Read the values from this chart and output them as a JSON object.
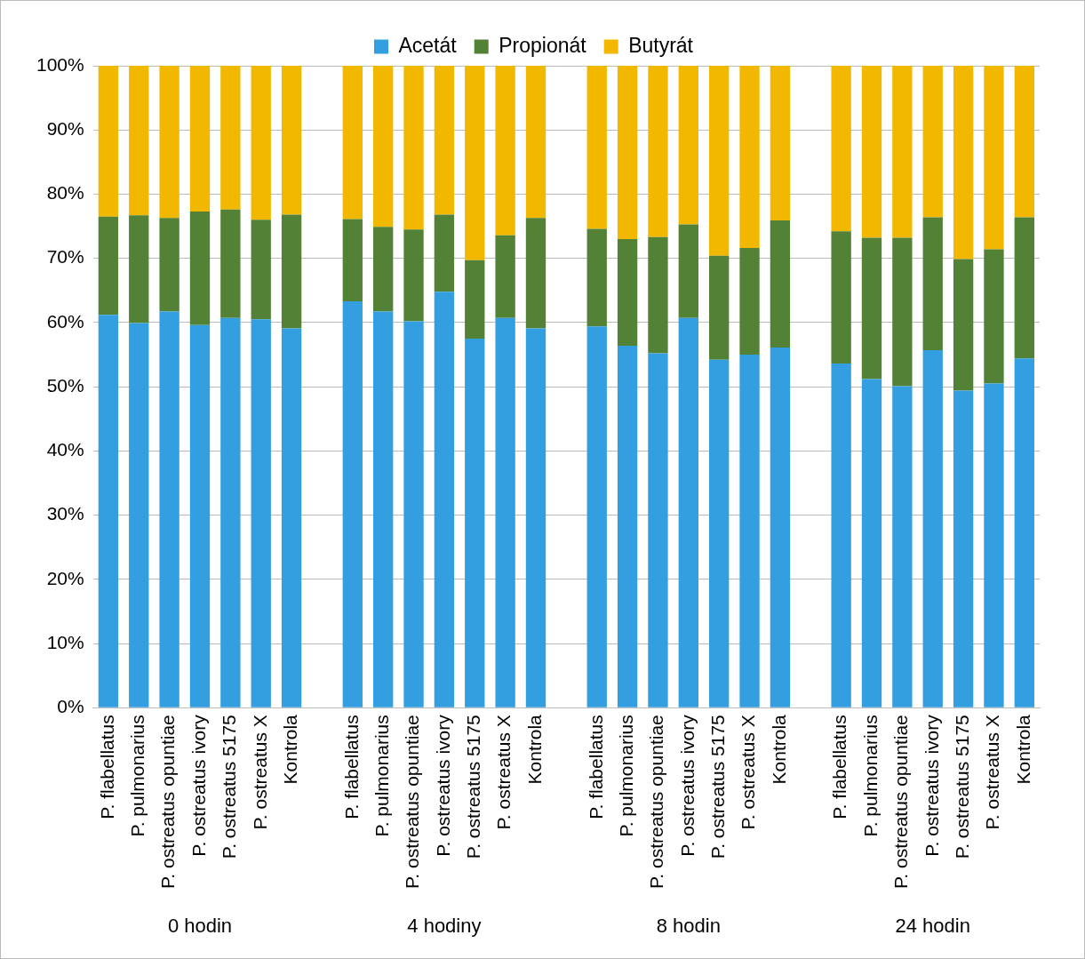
{
  "chart_data": {
    "type": "bar",
    "stacked": true,
    "categories": [
      "P. flabellatus",
      "P. pulmonarius",
      "P. ostreatus opuntiae",
      "P. ostreatus ivory",
      "P. ostreatus 5175",
      "P. ostreatus X",
      "Kontrola",
      null,
      "P. flabellatus",
      "P. pulmonarius",
      "P. ostreatus opuntiae",
      "P. ostreatus ivory",
      "P. ostreatus 5175",
      "P. ostreatus X",
      "Kontrola",
      null,
      "P. flabellatus",
      "P. pulmonarius",
      "P. ostreatus opuntiae",
      "P. ostreatus ivory",
      "P. ostreatus 5175",
      "P. ostreatus X",
      "Kontrola",
      null,
      "P. flabellatus",
      "P. pulmonarius",
      "P. ostreatus opuntiae",
      "P. ostreatus ivory",
      "P. ostreatus 5175",
      "P. ostreatus X",
      "Kontrola"
    ],
    "series": [
      {
        "name": "Acetát",
        "color": "#339fe0",
        "values": [
          61.2,
          59.9,
          61.7,
          59.6,
          60.7,
          60.5,
          59.1,
          null,
          63.3,
          61.7,
          60.2,
          64.8,
          57.5,
          60.7,
          59.1,
          null,
          59.4,
          56.4,
          55.2,
          60.7,
          54.2,
          55.0,
          56.1,
          null,
          53.6,
          51.2,
          50.1,
          55.7,
          49.4,
          50.5,
          54.4
        ]
      },
      {
        "name": "Propionát",
        "color": "#538135",
        "values": [
          15.3,
          16.8,
          14.6,
          17.7,
          16.9,
          15.5,
          17.7,
          null,
          12.8,
          13.2,
          14.3,
          12.0,
          12.2,
          12.9,
          17.2,
          null,
          15.2,
          16.6,
          18.1,
          14.6,
          16.2,
          16.6,
          19.8,
          null,
          20.6,
          22.0,
          23.1,
          20.7,
          20.5,
          20.9,
          22.0
        ]
      },
      {
        "name": "Butyrát",
        "color": "#f2b800",
        "values": [
          23.5,
          23.3,
          23.7,
          22.7,
          22.4,
          24.0,
          23.2,
          null,
          23.9,
          25.1,
          25.5,
          23.2,
          30.3,
          26.4,
          23.7,
          null,
          25.4,
          27.0,
          26.7,
          24.7,
          29.6,
          28.4,
          24.1,
          null,
          25.8,
          26.8,
          26.8,
          23.6,
          30.1,
          28.6,
          23.6
        ]
      }
    ],
    "ylim": [
      0,
      100
    ],
    "yticks": [
      {
        "value": 0,
        "label": "0%"
      },
      {
        "value": 10,
        "label": "10%"
      },
      {
        "value": 20,
        "label": "20%"
      },
      {
        "value": 30,
        "label": "30%"
      },
      {
        "value": 40,
        "label": "40%"
      },
      {
        "value": 50,
        "label": "50%"
      },
      {
        "value": 60,
        "label": "60%"
      },
      {
        "value": 70,
        "label": "70%"
      },
      {
        "value": 80,
        "label": "80%"
      },
      {
        "value": 90,
        "label": "90%"
      },
      {
        "value": 100,
        "label": "100%"
      }
    ],
    "grid": "y",
    "legend": "top",
    "annotations": [
      "0 hodin",
      "4 hodiny",
      "8 hodin",
      "24 hodin"
    ]
  }
}
